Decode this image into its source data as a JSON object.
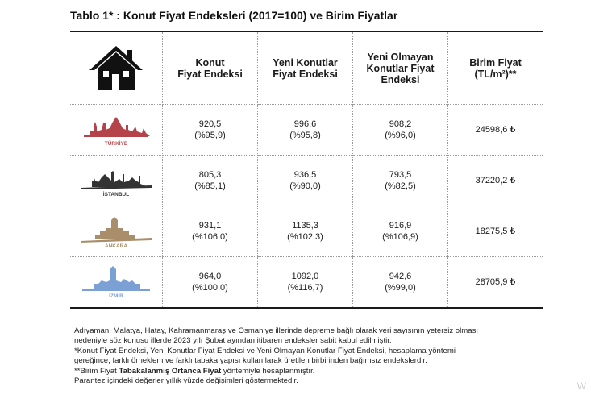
{
  "title": "Tablo 1* : Konut Fiyat Endeksleri (2017=100) ve Birim Fiyatlar",
  "columns": [
    {
      "line1": "Konut",
      "line2": "Fiyat Endeksi",
      "line3": ""
    },
    {
      "line1": "Yeni Konutlar",
      "line2": "Fiyat Endeksi",
      "line3": ""
    },
    {
      "line1": "Yeni Olmayan",
      "line2": "Konutlar Fiyat",
      "line3": "Endeksi"
    },
    {
      "line1": "Birim Fiyat",
      "line2": "(TL/m²)**",
      "line3": ""
    }
  ],
  "rows": [
    {
      "city": "TÜRKİYE",
      "color": "#b5444a",
      "konut": "920,5",
      "konut_chg": "(%95,9)",
      "yeni": "996,6",
      "yeni_chg": "(%95,8)",
      "yeni_olmayan": "908,2",
      "yeni_olmayan_chg": "(%96,0)",
      "birim": "24598,6 ₺"
    },
    {
      "city": "İSTANBUL",
      "color": "#3a3a3a",
      "konut": "805,3",
      "konut_chg": "(%85,1)",
      "yeni": "936,5",
      "yeni_chg": "(%90,0)",
      "yeni_olmayan": "793,5",
      "yeni_olmayan_chg": "(%82,5)",
      "birim": "37220,2 ₺"
    },
    {
      "city": "ANKARA",
      "color": "#a88e6a",
      "konut": "931,1",
      "konut_chg": "(%106,0)",
      "yeni": "1135,3",
      "yeni_chg": "(%102,3)",
      "yeni_olmayan": "916,9",
      "yeni_olmayan_chg": "(%106,9)",
      "birim": "18275,5 ₺"
    },
    {
      "city": "İZMİR",
      "color": "#7aa0d4",
      "konut": "964,0",
      "konut_chg": "(%100,0)",
      "yeni": "1092,0",
      "yeni_chg": "(%116,7)",
      "yeni_olmayan": "942,6",
      "yeni_olmayan_chg": "(%99,0)",
      "birim": "28705,9 ₺"
    }
  ],
  "notes": {
    "line1": "Adıyaman, Malatya, Hatay, Kahramanmaraş ve Osmaniye illerinde depreme bağlı olarak veri sayısının yetersiz olması",
    "line2": "nedeniyle söz konusu illerde 2023 yılı Şubat ayından itibaren endeksler sabit kabul edilmiştir.",
    "line3": "*Konut Fiyat Endeksi, Yeni Konutlar Fiyat Endeksi ve Yeni Olmayan Konutlar Fiyat Endeksi, hesaplama yöntemi",
    "line4": "gereğince, farklı örneklem ve farklı tabaka yapısı kullanılarak üretilen birbirinden bağımsız endekslerdir.",
    "line5_prefix": "**Birim Fiyat ",
    "line5_bold": "Tabakalanmış Ortanca Fiyat",
    "line5_suffix": " yöntemiyle hesaplanmıştır.",
    "line6": "Parantez içindeki değerler yıllık yüzde değişimleri göstermektedir."
  },
  "watermark": "W",
  "icon": "house-icon"
}
